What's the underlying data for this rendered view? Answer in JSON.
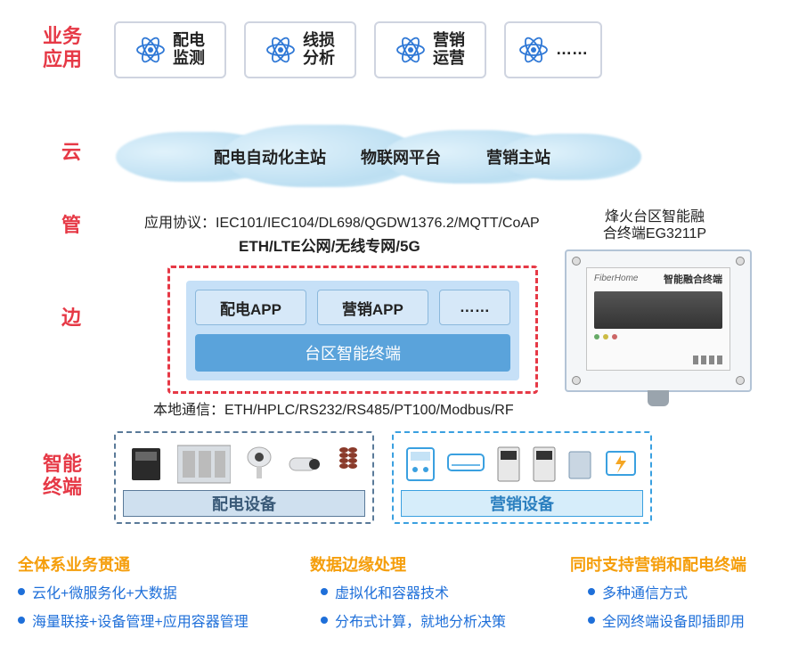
{
  "labels": {
    "apps": "业务\n应用",
    "cloud": "云",
    "pipe": "管",
    "edge": "边",
    "terminal": "智能\n终端"
  },
  "apps": [
    {
      "text": "配电\n监测"
    },
    {
      "text": "线损\n分析"
    },
    {
      "text": "营销\n运营"
    },
    {
      "text": "……"
    }
  ],
  "cloud": {
    "t1": "配电自动化主站",
    "t2": "物联网平台",
    "t3": "营销主站"
  },
  "proto": {
    "line1_prefix": "应用协议：",
    "line1_rest": "IEC101/IEC104/DL698/QGDW1376.2/MQTT/CoAP",
    "line2": "ETH/LTE公网/无线专网/5G",
    "local_prefix": "本地通信：",
    "local_rest": "ETH/HPLC/RS232/RS485/PT100/Modbus/RF"
  },
  "edge": {
    "app1": "配电APP",
    "app2": "营销APP",
    "app3": "……",
    "term": "台区智能终端"
  },
  "device": {
    "caption": "烽火台区智能融\n合终端EG3211P",
    "panel_title": "智能融合终端"
  },
  "equip": {
    "left": "配电设备",
    "right": "营销设备"
  },
  "features": {
    "a_title": "全体系业务贯通",
    "a1": "云化+微服务化+大数据",
    "a2": "海量联接+设备管理+应用容器管理",
    "b_title": "数据边缘处理",
    "b1": "虚拟化和容器技术",
    "b2": "分布式计算，就地分析决策",
    "c_title": "同时支持营销和配电终端",
    "c1": "多种通信方式",
    "c2": "全网终端设备即插即用"
  },
  "colors": {
    "red": "#e63946",
    "orange": "#f59e0b",
    "blue": "#1e6fd9",
    "icon_blue": "#2f78d6",
    "eq_left_border": "#5a7a99",
    "eq_left_fill": "#cfe0ef",
    "eq_left_text": "#3a5a78",
    "eq_right_border": "#3aa0e0",
    "eq_right_fill": "#d6edfa",
    "eq_right_text": "#2b7fbf"
  }
}
